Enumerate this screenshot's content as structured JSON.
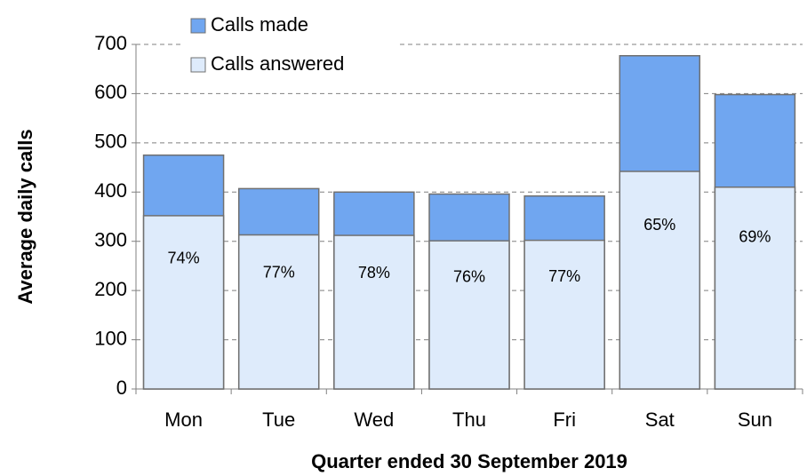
{
  "chart_data": {
    "type": "bar",
    "categories": [
      "Mon",
      "Tue",
      "Wed",
      "Thu",
      "Fri",
      "Sat",
      "Sun"
    ],
    "series": [
      {
        "name": "Calls made",
        "color": "#70a6f0",
        "values": [
          475,
          407,
          400,
          396,
          392,
          677,
          598
        ]
      },
      {
        "name": "Calls answered",
        "color": "#deebfb",
        "values": [
          352,
          313,
          312,
          301,
          302,
          442,
          410
        ],
        "value_labels": [
          "74%",
          "77%",
          "78%",
          "76%",
          "77%",
          "65%",
          "69%"
        ]
      }
    ],
    "ylim": [
      0,
      700
    ],
    "yticks": [
      0,
      100,
      200,
      300,
      400,
      500,
      600,
      700
    ],
    "grid": true,
    "y_label": "Average daily calls",
    "x_label": "Quarter ended 30 September 2019",
    "legend": "top-left"
  }
}
